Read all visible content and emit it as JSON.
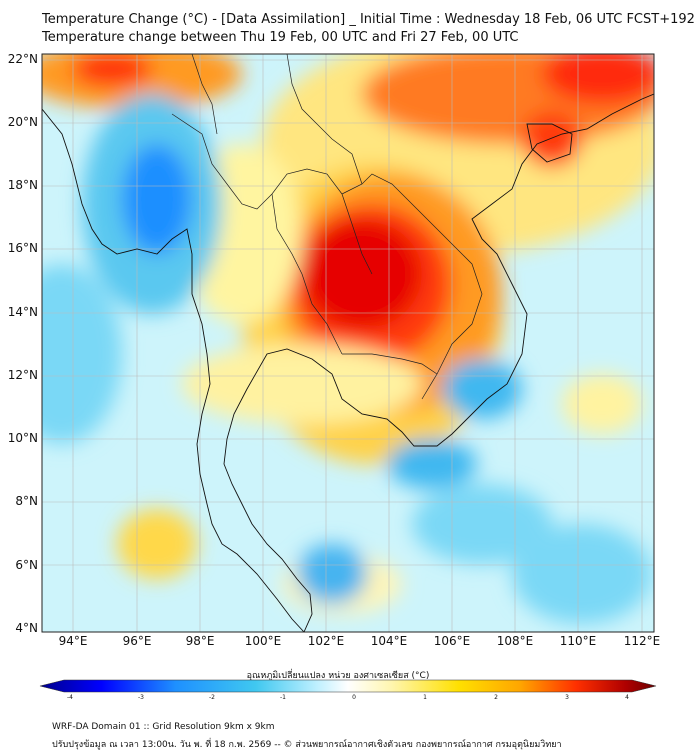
{
  "header": {
    "title": "Temperature Change (°C) - [Data Assimilation] _ Initial Time : Wednesday 18 Feb, 06 UTC FCST+192",
    "subtitle": "Temperature change between Thu 19 Feb, 00 UTC and Fri 27 Feb, 00 UTC"
  },
  "map": {
    "lat_labels": [
      "22°N",
      "20°N",
      "18°N",
      "16°N",
      "14°N",
      "12°N",
      "10°N",
      "8°N",
      "6°N",
      "4°N"
    ],
    "lon_labels": [
      "94°E",
      "96°E",
      "98°E",
      "100°E",
      "102°E",
      "104°E",
      "106°E",
      "108°E",
      "110°E",
      "112°E"
    ],
    "lat_range": [
      4,
      22.3
    ],
    "lon_range": [
      93,
      112.4
    ]
  },
  "colorbar": {
    "title": "อุณหภูมิเปลี่ยนแปลง หน่วย องศาเซลเซียส (°C)",
    "ticks": [
      "-4",
      "-3",
      "-2",
      "-1",
      "0",
      "1",
      "2",
      "3",
      "4"
    ],
    "colors": [
      "#00008b",
      "#0000ff",
      "#1e90ff",
      "#40c8f0",
      "#9ee8ff",
      "#ffffff",
      "#fff8b0",
      "#ffe000",
      "#ffa500",
      "#ff3000",
      "#b00000",
      "#6a0000"
    ]
  },
  "footer": {
    "line1": "WRF-DA Domain 01 :: Grid Resolution 9km x 9km",
    "line2": "ปรับปรุงข้อมูล ณ เวลา 13:00น. วัน พ. ที่ 18 ก.พ. 2569 -- © ส่วนพยากรณ์อากาศเชิงตัวเลข กองพยากรณ์อากาศ กรมอุตุนิยมวิทยา"
  }
}
